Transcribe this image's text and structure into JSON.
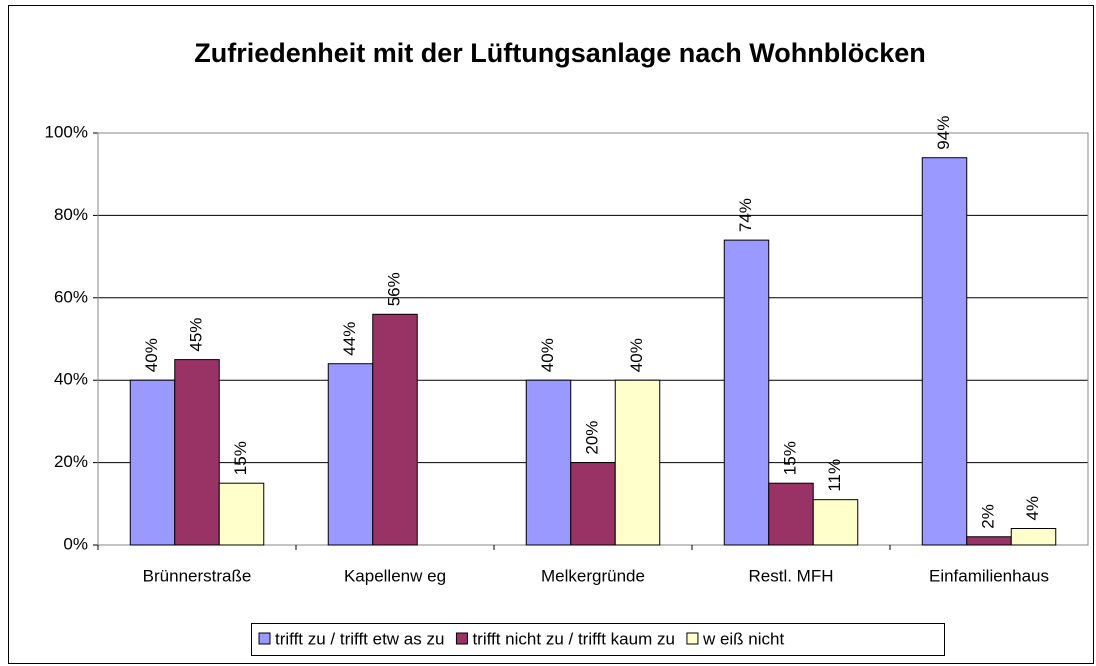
{
  "chart_data": {
    "type": "bar",
    "title": "Zufriedenheit mit der Lüftungsanlage nach Wohnblöcken",
    "categories": [
      "Brünnerstraße",
      "Kapellenw eg",
      "Melkergründe",
      "Restl. MFH",
      "Einfamilienhaus"
    ],
    "series": [
      {
        "name": "trifft zu / trifft etw as zu",
        "color": "#9999ff",
        "values": [
          40,
          44,
          40,
          74,
          94
        ],
        "value_labels": [
          "40%",
          "44%",
          "40%",
          "74%",
          "94%"
        ]
      },
      {
        "name": "trifft nicht zu / trifft kaum zu",
        "color": "#993366",
        "values": [
          45,
          56,
          20,
          15,
          2
        ],
        "value_labels": [
          "45%",
          "56%",
          "20%",
          "15%",
          "2%"
        ]
      },
      {
        "name": "w eiß nicht",
        "color": "#ffffcc",
        "values": [
          15,
          null,
          40,
          11,
          4
        ],
        "value_labels": [
          "15%",
          null,
          "40%",
          "11%",
          "4%"
        ]
      }
    ],
    "ylim": [
      0,
      100
    ],
    "yticks": [
      {
        "value": 0,
        "label": "0%"
      },
      {
        "value": 20,
        "label": "20%"
      },
      {
        "value": 40,
        "label": "40%"
      },
      {
        "value": 60,
        "label": "60%"
      },
      {
        "value": 80,
        "label": "80%"
      },
      {
        "value": 100,
        "label": "100%"
      }
    ],
    "grid": true,
    "legend": "bottom"
  }
}
